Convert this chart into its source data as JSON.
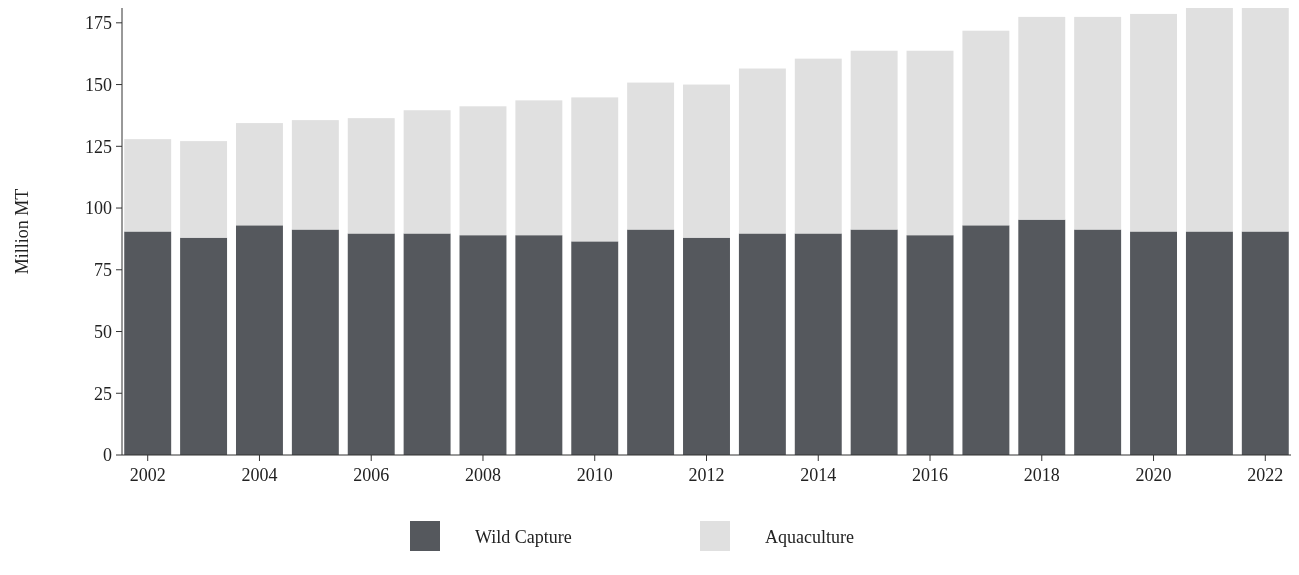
{
  "chart_data": {
    "type": "bar",
    "stacked": true,
    "ylabel": "Million MT",
    "categories": [
      "2002",
      null,
      "2004",
      null,
      "2006",
      null,
      "2008",
      null,
      "2010",
      null,
      "2012",
      null,
      "2014",
      null,
      "2016",
      null,
      "2018",
      null,
      "2020",
      null,
      "2022"
    ],
    "series": [
      {
        "name": "Wild Capture",
        "color": "#55585d",
        "values": [
          90.5,
          88,
          93,
          91.3,
          89.7,
          89.7,
          89,
          89,
          86.5,
          91.3,
          88,
          89.7,
          89.7,
          91.3,
          89,
          93,
          95.3,
          91.3,
          90.5,
          90.5,
          90.5
        ]
      },
      {
        "name": "Aquaculture",
        "color": "#e0e0e0",
        "values": [
          37.4,
          39.1,
          41.4,
          44.3,
          46.7,
          49.9,
          52.2,
          54.6,
          58.3,
          59.5,
          62,
          66.8,
          70.8,
          72.4,
          74.7,
          78.8,
          82.1,
          86.1,
          88.1,
          90.5,
          90.5
        ]
      }
    ],
    "ylim": [
      0,
      181
    ],
    "yticks": [
      0,
      25,
      50,
      75,
      100,
      125,
      150,
      175
    ],
    "grid": false,
    "legend": "bottom"
  }
}
